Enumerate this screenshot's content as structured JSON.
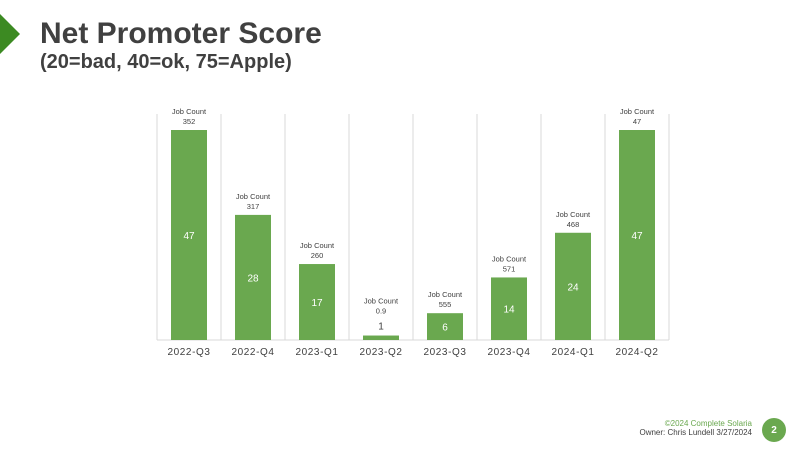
{
  "slide": {
    "title": "Net Promoter Score",
    "subtitle": "(20=bad, 40=ok, 75=Apple)",
    "footer_copyright": "©2024 Complete Solaria",
    "footer_owner": "Owner: Chris Lundell 3/27/2024",
    "page_number": "2"
  },
  "colors": {
    "bar": "#6aa84f",
    "accent": "#3c8a22",
    "grid": "#d9d9d9"
  },
  "chart_data": {
    "type": "bar",
    "title": "Net Promoter Score",
    "subtitle": "(20=bad, 40=ok, 75=Apple)",
    "categories": [
      "2022-Q3",
      "2022-Q4",
      "2023-Q1",
      "2023-Q2",
      "2023-Q3",
      "2023-Q4",
      "2024-Q1",
      "2024-Q2"
    ],
    "values": [
      47,
      28,
      17,
      1,
      6,
      14,
      24,
      47
    ],
    "annotation_label": "Job Count",
    "job_counts": [
      "352",
      "317",
      "260",
      "0.9",
      "555",
      "571",
      "468",
      "47"
    ],
    "ylim": [
      0,
      52
    ],
    "grid": "vertical separators",
    "legend": "none"
  }
}
